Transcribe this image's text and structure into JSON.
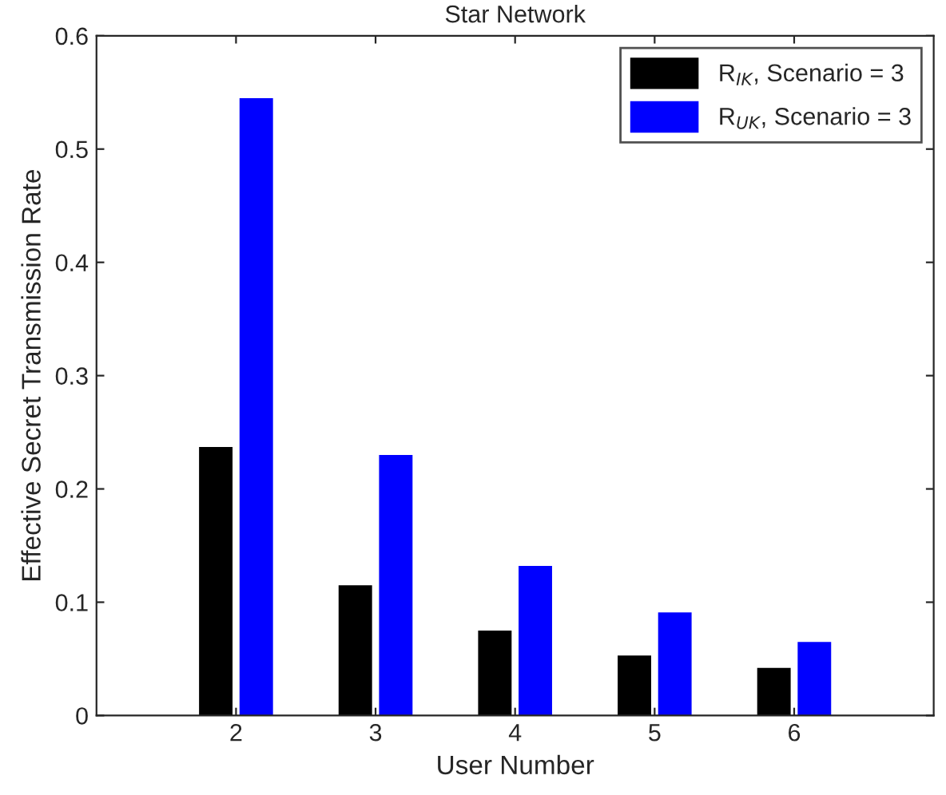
{
  "chart_data": {
    "type": "bar",
    "title": "Star Network",
    "xlabel": "User Number",
    "ylabel": "Effective Secret Transmission Rate",
    "x": [
      2,
      3,
      4,
      5,
      6
    ],
    "series": [
      {
        "name": "R$_{IK}$, Scenario = 3",
        "color": "#000000",
        "values": [
          0.237,
          0.115,
          0.075,
          0.053,
          0.042
        ]
      },
      {
        "name": "R$_{UK}$, Scenario = 3",
        "color": "#0000ff",
        "values": [
          0.545,
          0.23,
          0.132,
          0.091,
          0.065
        ]
      }
    ],
    "xlim": [
      1,
      7
    ],
    "xticks": [
      2,
      3,
      4,
      5,
      6
    ],
    "ylim": [
      0,
      0.6
    ],
    "yticks": [
      0,
      0.1,
      0.2,
      0.3,
      0.4,
      0.5,
      0.6
    ],
    "grid": false,
    "legend": "top right"
  }
}
